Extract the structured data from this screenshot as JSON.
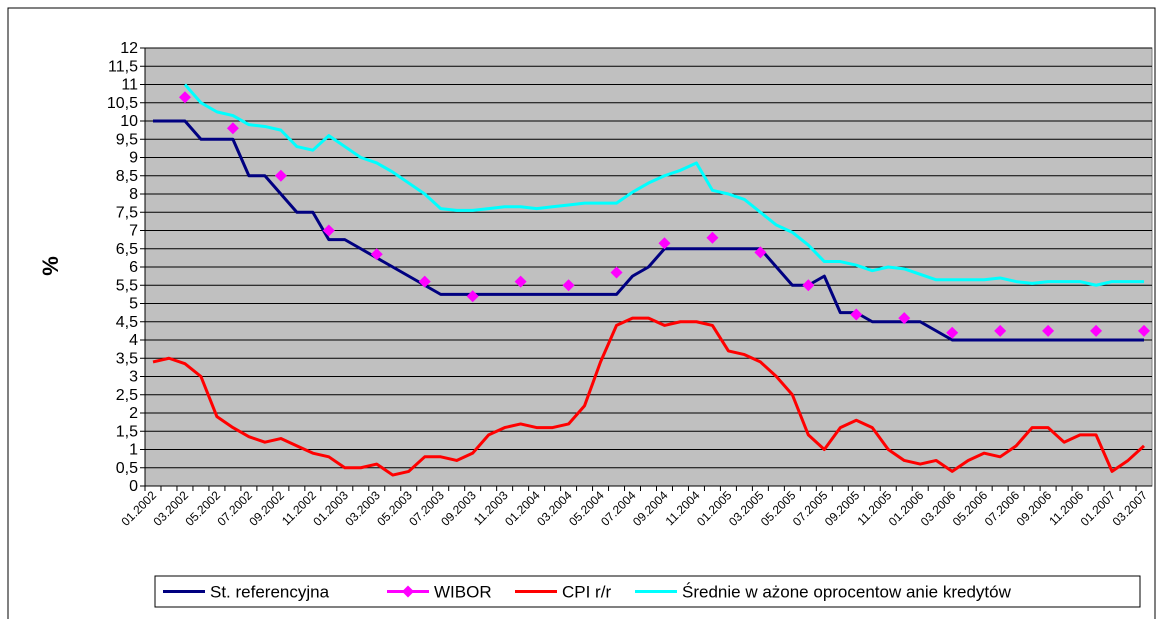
{
  "chart_data": {
    "type": "line",
    "y_label": "%",
    "categories": [
      "01.2002",
      null,
      "03.2002",
      null,
      "05.2002",
      null,
      "07.2002",
      null,
      "09.2002",
      null,
      "11.2002",
      null,
      "01.2003",
      null,
      "03.2003",
      null,
      "05.2003",
      null,
      "07.2003",
      null,
      "09.2003",
      null,
      "11.2003",
      null,
      "01.2004",
      null,
      "03.2004",
      null,
      "05.2004",
      null,
      "07.2004",
      null,
      "09.2004",
      null,
      "11.2004",
      null,
      "01.2005",
      null,
      "03.2005",
      null,
      "05.2005",
      null,
      "07.2005",
      null,
      "09.2005",
      null,
      "11.2005",
      null,
      "01.2006",
      null,
      "03.2006",
      null,
      "05.2006",
      null,
      "07.2006",
      null,
      "09.2006",
      null,
      "11.2006",
      null,
      "01.2007",
      null,
      "03.2007"
    ],
    "series": [
      {
        "name": "St. referencyjna",
        "color": "#000080",
        "style": "line",
        "values": [
          10,
          10,
          10,
          9.5,
          9.5,
          9.5,
          8.5,
          8.5,
          8,
          7.5,
          7.5,
          6.75,
          6.75,
          6.5,
          6.25,
          6,
          5.75,
          5.5,
          5.25,
          5.25,
          5.25,
          5.25,
          5.25,
          5.25,
          5.25,
          5.25,
          5.25,
          5.25,
          5.25,
          5.25,
          5.75,
          6,
          6.5,
          6.5,
          6.5,
          6.5,
          6.5,
          6.5,
          6.5,
          6,
          5.5,
          5.5,
          5.75,
          4.75,
          4.75,
          4.5,
          4.5,
          4.5,
          4.5,
          4.25,
          4,
          4,
          4,
          4,
          4,
          4,
          4,
          4,
          4,
          4,
          4,
          4,
          4
        ]
      },
      {
        "name": "WIBOR",
        "color": "#FF00FF",
        "style": "markers",
        "values": [
          null,
          null,
          10.65,
          null,
          null,
          9.8,
          null,
          null,
          8.5,
          null,
          null,
          7.0,
          null,
          null,
          6.35,
          null,
          null,
          5.6,
          null,
          null,
          5.2,
          null,
          null,
          5.6,
          null,
          null,
          5.5,
          null,
          null,
          5.85,
          null,
          null,
          6.65,
          null,
          null,
          6.8,
          null,
          null,
          6.4,
          null,
          null,
          5.5,
          null,
          null,
          4.7,
          null,
          null,
          4.6,
          null,
          null,
          4.2,
          null,
          null,
          4.25,
          null,
          null,
          4.25,
          null,
          null,
          4.25,
          null,
          null,
          4.25
        ]
      },
      {
        "name": "CPI r/r",
        "color": "#FF0000",
        "style": "line",
        "values": [
          3.4,
          3.5,
          3.35,
          3.0,
          1.9,
          1.6,
          1.35,
          1.2,
          1.3,
          1.1,
          0.9,
          0.8,
          0.5,
          0.5,
          0.6,
          0.3,
          0.4,
          0.8,
          0.8,
          0.7,
          0.9,
          1.4,
          1.6,
          1.7,
          1.6,
          1.6,
          1.7,
          2.2,
          3.4,
          4.4,
          4.6,
          4.6,
          4.4,
          4.5,
          4.5,
          4.4,
          3.7,
          3.6,
          3.4,
          3.0,
          2.5,
          1.4,
          1.0,
          1.6,
          1.8,
          1.6,
          1.0,
          0.7,
          0.6,
          0.7,
          0.4,
          0.7,
          0.9,
          0.8,
          1.1,
          1.6,
          1.6,
          1.2,
          1.4,
          1.4,
          0.4,
          0.7,
          1.1
        ]
      },
      {
        "name": "Średnie w ażone oprocentow anie kredytów",
        "color": "#00FFFF",
        "style": "line",
        "values": [
          null,
          null,
          11.0,
          10.5,
          10.25,
          10.15,
          9.9,
          9.85,
          9.75,
          9.3,
          9.2,
          9.6,
          9.3,
          9.0,
          8.85,
          8.6,
          8.3,
          8.0,
          7.6,
          7.55,
          7.55,
          7.6,
          7.65,
          7.65,
          7.6,
          7.65,
          7.7,
          7.75,
          7.75,
          7.75,
          8.05,
          8.3,
          8.5,
          8.65,
          8.85,
          8.1,
          8.0,
          7.85,
          7.5,
          7.15,
          6.95,
          6.6,
          6.15,
          6.15,
          6.05,
          5.9,
          6.0,
          5.95,
          5.8,
          5.65,
          5.65,
          5.65,
          5.65,
          5.7,
          5.6,
          5.55,
          5.6,
          5.6,
          5.6,
          5.5,
          5.6,
          5.6,
          5.6
        ]
      }
    ],
    "ylim": [
      0,
      12
    ],
    "yticks": [
      0,
      {
        "value": 0.5,
        "label": "0,5"
      },
      1,
      {
        "value": 1.5,
        "label": "1,5"
      },
      2,
      {
        "value": 2.5,
        "label": "2,5"
      },
      3,
      {
        "value": 3.5,
        "label": "3,5"
      },
      4,
      {
        "value": 4.5,
        "label": "4,5"
      },
      5,
      {
        "value": 5.5,
        "label": "5,5"
      },
      6,
      {
        "value": 6.5,
        "label": "6,5"
      },
      7,
      {
        "value": 7.5,
        "label": "7,5"
      },
      8,
      {
        "value": 8.5,
        "label": "8,5"
      },
      9,
      {
        "value": 9.5,
        "label": "9,5"
      },
      10,
      {
        "value": 10.5,
        "label": "10,5"
      },
      11,
      {
        "value": 11.5,
        "label": "11,5"
      },
      12
    ],
    "grid": true,
    "plot_background": "#C0C0C0",
    "legend": "bottom"
  }
}
